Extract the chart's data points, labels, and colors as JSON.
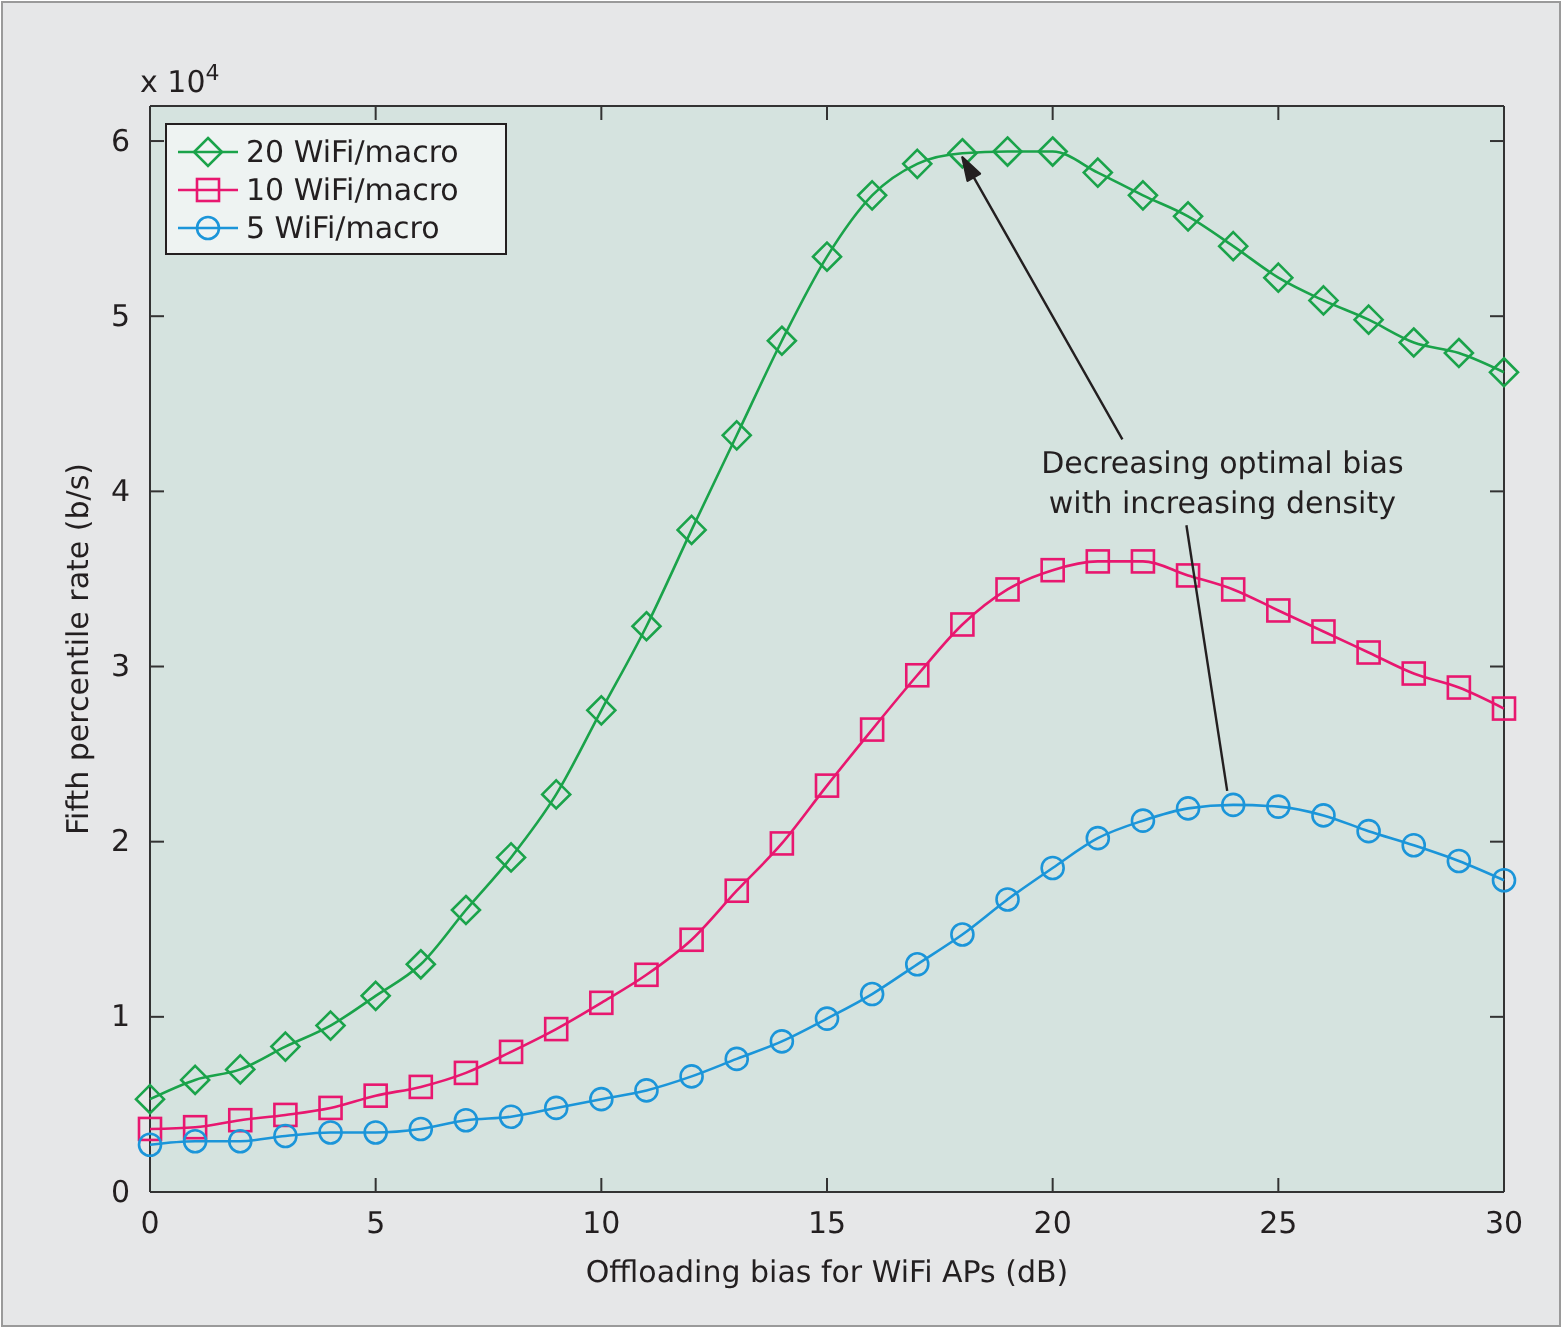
{
  "chart_data": {
    "type": "line",
    "xlabel": "Offloading bias for WiFi APs (dB)",
    "ylabel": "Fifth percentile rate (b/s)",
    "x": [
      0,
      1,
      2,
      3,
      4,
      5,
      6,
      7,
      8,
      9,
      10,
      11,
      12,
      13,
      14,
      15,
      16,
      17,
      18,
      19,
      20,
      21,
      22,
      23,
      24,
      25,
      26,
      27,
      28,
      29,
      30
    ],
    "series": [
      {
        "name": "20 WiFi/macro",
        "color": "#1aa34a",
        "marker": "diamond",
        "values": [
          0.53,
          0.64,
          0.7,
          0.83,
          0.95,
          1.12,
          1.3,
          1.61,
          1.91,
          2.27,
          2.75,
          3.23,
          3.78,
          4.32,
          4.86,
          5.34,
          5.69,
          5.87,
          5.93,
          5.94,
          5.94,
          5.82,
          5.69,
          5.57,
          5.4,
          5.22,
          5.09,
          4.98,
          4.85,
          4.79,
          4.68
        ]
      },
      {
        "name": "10 WiFi/macro",
        "color": "#e8176f",
        "marker": "square",
        "values": [
          0.36,
          0.37,
          0.41,
          0.44,
          0.48,
          0.55,
          0.6,
          0.68,
          0.8,
          0.93,
          1.08,
          1.24,
          1.44,
          1.72,
          1.99,
          2.32,
          2.64,
          2.95,
          3.24,
          3.44,
          3.55,
          3.6,
          3.6,
          3.52,
          3.44,
          3.32,
          3.2,
          3.08,
          2.96,
          2.88,
          2.76
        ]
      },
      {
        "name": "5 WiFi/macro",
        "color": "#1b95d9",
        "marker": "circle",
        "values": [
          0.27,
          0.29,
          0.29,
          0.32,
          0.34,
          0.34,
          0.36,
          0.41,
          0.43,
          0.48,
          0.53,
          0.58,
          0.66,
          0.76,
          0.86,
          0.99,
          1.13,
          1.3,
          1.47,
          1.67,
          1.85,
          2.02,
          2.12,
          2.19,
          2.21,
          2.2,
          2.15,
          2.06,
          1.98,
          1.89,
          1.78
        ]
      }
    ],
    "xlim": [
      0,
      30
    ],
    "xticks": [
      0,
      5,
      10,
      15,
      20,
      25,
      30
    ],
    "ylim": [
      0,
      6.2
    ],
    "yticks": [
      0,
      1,
      2,
      3,
      4,
      5,
      6
    ],
    "grid": false,
    "legend": "top left",
    "line_style": "solid",
    "annotations": [
      "x 10$^{4}$",
      {
        "text": "Decreasing optimal bias\nwith increasing density",
        "x": 18,
        "y": 5.93
      }
    ]
  }
}
